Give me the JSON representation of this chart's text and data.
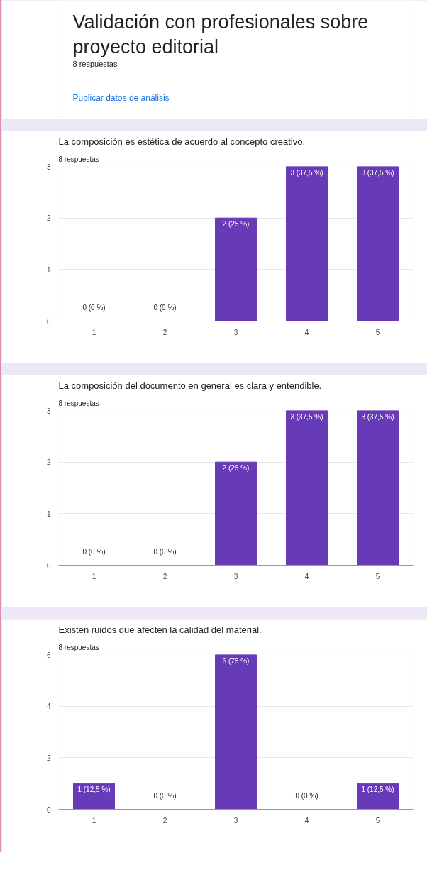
{
  "chart_data": [
    {
      "type": "other",
      "title": "Validación con profesionales sobre proyecto editorial",
      "subtitle": "8 respuestas",
      "annotations": [
        "Publicar datos de análisis"
      ]
    },
    {
      "type": "bar",
      "title": "La composición es estética de acuerdo al concepto creativo.",
      "subtitle": "8 respuestas",
      "categories": [
        "1",
        "2",
        "3",
        "4",
        "5"
      ],
      "values": [
        0,
        0,
        2,
        3,
        3
      ],
      "value_labels": [
        "0 (0 %)",
        "0 (0 %)",
        "2 (25 %)",
        "3 (37,5 %)",
        "3 (37,5 %)"
      ],
      "color": "#673ab7",
      "ylim": [
        0,
        3
      ],
      "yticks": [
        0,
        1,
        2,
        3
      ],
      "grid": "y"
    },
    {
      "type": "bar",
      "title": "La composición del documento en general es clara y entendible.",
      "subtitle": "8 respuestas",
      "categories": [
        "1",
        "2",
        "3",
        "4",
        "5"
      ],
      "values": [
        0,
        0,
        2,
        3,
        3
      ],
      "value_labels": [
        "0 (0 %)",
        "0 (0 %)",
        "2 (25 %)",
        "3 (37,5 %)",
        "3 (37,5 %)"
      ],
      "color": "#673ab7",
      "ylim": [
        0,
        3
      ],
      "yticks": [
        0,
        1,
        2,
        3
      ],
      "grid": "y"
    },
    {
      "type": "bar",
      "title": "Existen ruidos que afecten la calidad del material.",
      "subtitle": "8 respuestas",
      "categories": [
        "1",
        "2",
        "3",
        "4",
        "5"
      ],
      "values": [
        1,
        0,
        6,
        0,
        1
      ],
      "value_labels": [
        "1 (12,5 %)",
        "0 (0 %)",
        "6 (75 %)",
        "0 (0 %)",
        "1 (12,5 %)"
      ],
      "color": "#673ab7",
      "ylim": [
        0,
        6
      ],
      "yticks": [
        0,
        2,
        4,
        6
      ],
      "grid": "y"
    }
  ]
}
